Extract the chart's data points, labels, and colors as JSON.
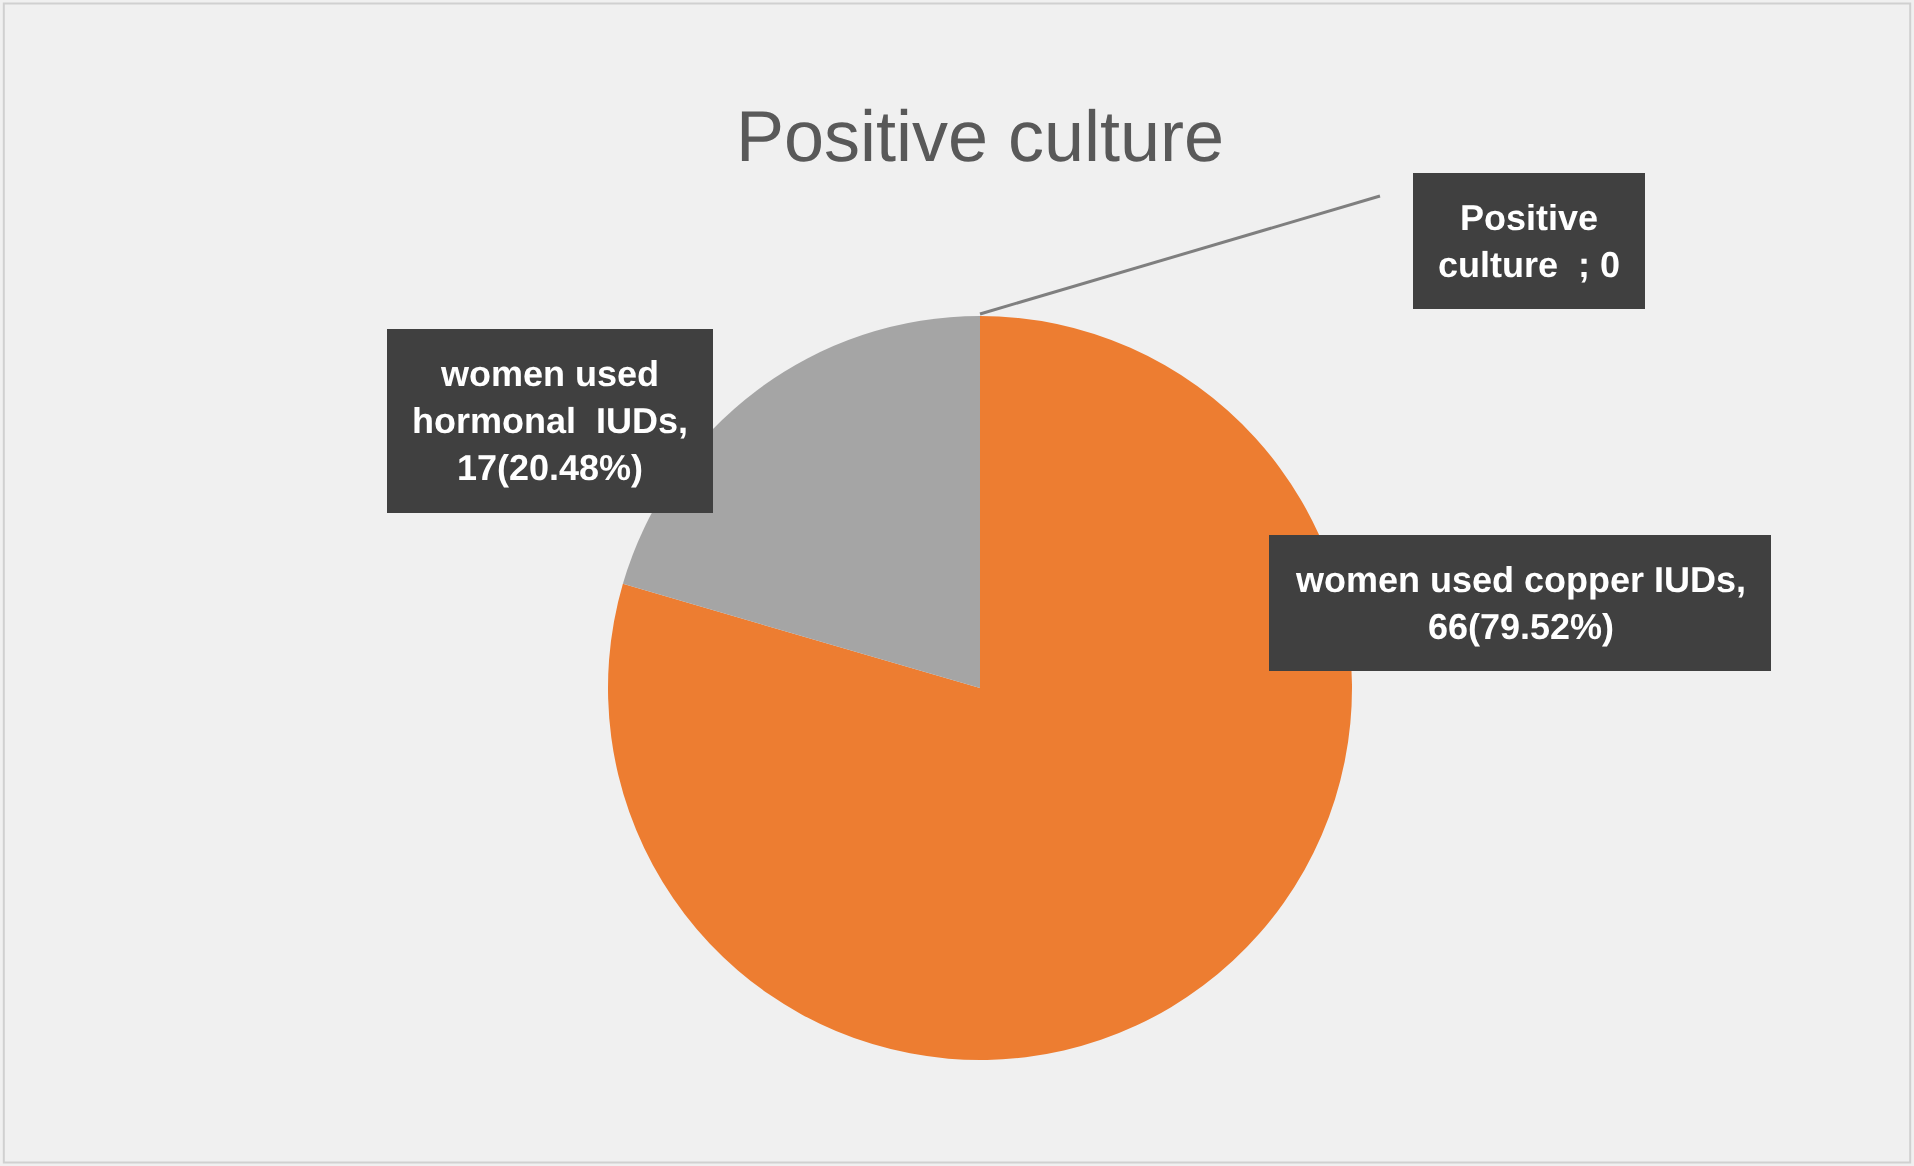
{
  "chart_data": {
    "type": "pie",
    "title": "Positive culture",
    "categories": [
      "Positive\nculture  ; 0",
      "women used copper IUDs,\n66(79.52%)",
      "women used\nhormonal  IUDs,\n17(20.48%)"
    ],
    "values": [
      0,
      66,
      17
    ],
    "colors": [
      "#4472c4",
      "#ed7d31",
      "#a5a5a5"
    ],
    "legend": false
  }
}
